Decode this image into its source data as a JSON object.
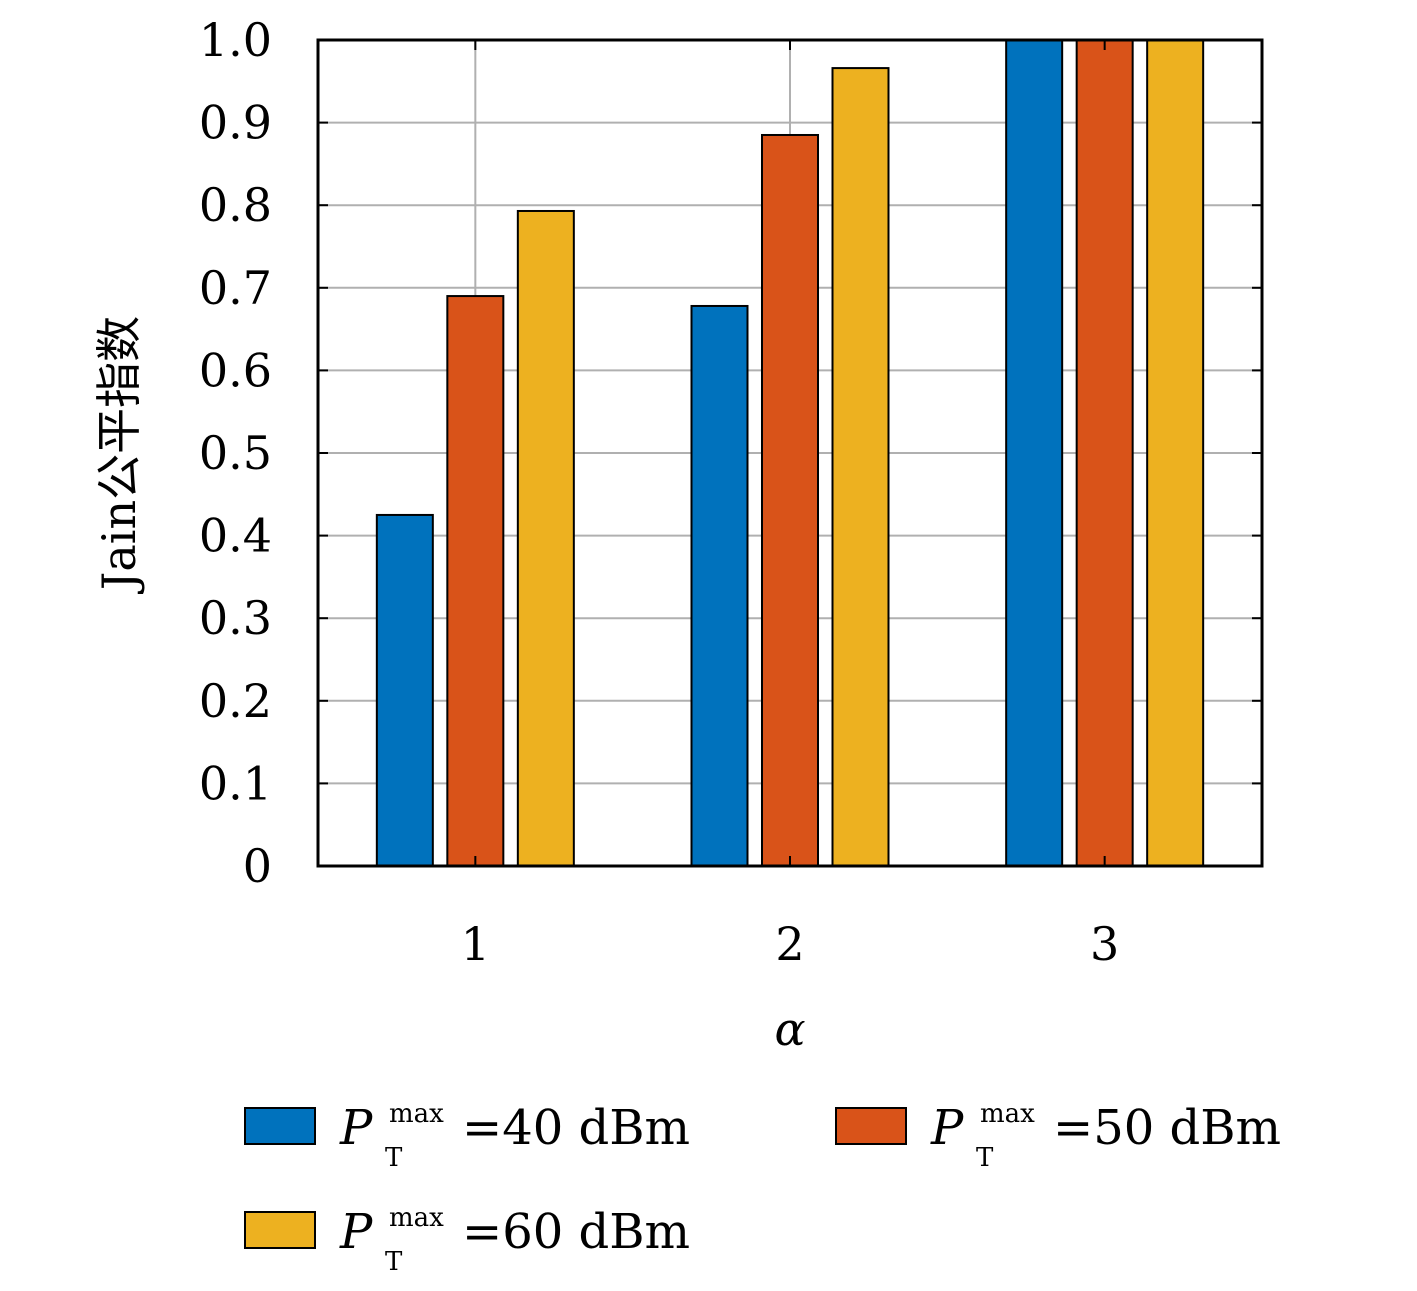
{
  "chart_data": {
    "type": "bar",
    "xlabel": "α",
    "ylabel": "Jain公平指数",
    "categories": [
      "1",
      "2",
      "3"
    ],
    "ylim": [
      0,
      1.0
    ],
    "yticks": [
      "0",
      "0.1",
      "0.2",
      "0.3",
      "0.4",
      "0.5",
      "0.6",
      "0.7",
      "0.8",
      "0.9",
      "1.0"
    ],
    "grid": true,
    "legend_position": "bottom",
    "series": [
      {
        "name": "P_T^max=40 dBm",
        "legend_P": "P",
        "legend_sub": "T",
        "legend_sup": "max",
        "legend_rest": "=40 dBm",
        "color": "#0072BD",
        "values": [
          0.425,
          0.678,
          1.0
        ]
      },
      {
        "name": "P_T^max=50 dBm",
        "legend_P": "P",
        "legend_sub": "T",
        "legend_sup": "max",
        "legend_rest": "=50 dBm",
        "color": "#D95319",
        "values": [
          0.69,
          0.885,
          1.0
        ]
      },
      {
        "name": "P_T^max=60 dBm",
        "legend_P": "P",
        "legend_sub": "T",
        "legend_sup": "max",
        "legend_rest": "=60 dBm",
        "color": "#EDB120",
        "values": [
          0.793,
          0.966,
          1.0
        ]
      }
    ]
  }
}
